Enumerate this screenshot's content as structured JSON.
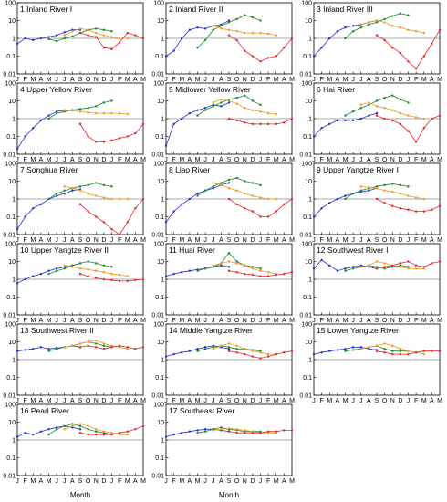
{
  "figure": {
    "x_axis_label": "Month",
    "month_ticks": [
      "J",
      "F",
      "M",
      "A",
      "M",
      "J",
      "J",
      "A",
      "S",
      "O",
      "N",
      "D",
      "J",
      "F",
      "M",
      "A",
      "M"
    ],
    "y_ticks": [
      "100",
      "10",
      "1",
      "0.1",
      "0.01"
    ],
    "colors": {
      "winter": "#e8252a",
      "spring": "#2233cc",
      "summer": "#1a8a2a",
      "autumn": "#f29a1a",
      "frame": "#000000",
      "ref_line": "#555555"
    }
  },
  "chart_data": [
    {
      "type": "line",
      "title": "1 Inland River I",
      "ylim": [
        0.01,
        100
      ],
      "yscale": "log",
      "series": [
        {
          "values": [
            0.5,
            1.0,
            0.8,
            1.0,
            1.2,
            1.5,
            2.2,
            3.0,
            3.0
          ]
        },
        {
          "values": [
            0.9,
            0.7,
            1.0,
            1.3,
            2.0,
            3.0,
            3.5,
            3.0,
            2.5
          ]
        },
        {
          "values": [
            1.5,
            2.5,
            3.5,
            3.0,
            2.0,
            1.5,
            1.2,
            1.0,
            1.0
          ]
        },
        {
          "values": [
            2.0,
            1.5,
            1.2,
            0.3,
            0.25,
            0.6,
            2.0,
            1.5,
            1.0
          ]
        }
      ]
    },
    {
      "type": "line",
      "title": "2 Inland River II",
      "ylim": [
        0.01,
        100
      ],
      "yscale": "log",
      "series": [
        {
          "values": [
            0.1,
            0.2,
            1.0,
            3.0,
            4.0,
            3.5,
            5.0,
            6.0,
            10.0
          ]
        },
        {
          "values": [
            0.3,
            0.8,
            3.0,
            5.0,
            8.0,
            12.0,
            20.0,
            15.0,
            10.0
          ]
        },
        {
          "values": [
            5.0,
            3.5,
            3.0,
            2.5,
            2.0,
            2.0,
            2.0,
            1.8,
            1.5
          ]
        },
        {
          "values": [
            1.5,
            0.8,
            0.2,
            0.1,
            0.05,
            0.08,
            0.1,
            0.3,
            1.0
          ]
        }
      ]
    },
    {
      "type": "line",
      "title": "3 Inland River III",
      "ylim": [
        0.01,
        100
      ],
      "yscale": "log",
      "series": [
        {
          "values": [
            0.1,
            0.3,
            1.0,
            2.5,
            4.0,
            5.0,
            6.0,
            8.0,
            10.0
          ]
        },
        {
          "values": [
            1.0,
            2.5,
            4.0,
            6.0,
            8.0,
            12.0,
            18.0,
            25.0,
            20.0
          ]
        },
        {
          "values": [
            6.0,
            8.0,
            10.0,
            8.0,
            5.0,
            4.0,
            3.0,
            2.5,
            2.0
          ]
        },
        {
          "values": [
            1.5,
            0.8,
            0.3,
            0.15,
            0.05,
            0.02,
            0.1,
            0.5,
            3.0
          ]
        }
      ]
    },
    {
      "type": "line",
      "title": "4 Upper Yellow River",
      "ylim": [
        0.01,
        100
      ],
      "yscale": "log",
      "series": [
        {
          "values": [
            0.02,
            0.1,
            0.3,
            0.8,
            1.5,
            2.5,
            3.0,
            3.0,
            3.5
          ]
        },
        {
          "values": [
            1.0,
            2.0,
            2.5,
            3.0,
            3.5,
            4.0,
            5.0,
            8.0,
            10.0
          ]
        },
        {
          "values": [
            3.0,
            2.8,
            2.5,
            2.2,
            2.0,
            2.0,
            2.0,
            2.0,
            1.8
          ]
        },
        {
          "values": [
            0.5,
            0.1,
            0.05,
            0.05,
            0.06,
            0.08,
            0.1,
            0.15,
            0.5
          ]
        }
      ]
    },
    {
      "type": "line",
      "title": "5 Midlower Yellow River",
      "ylim": [
        0.01,
        100
      ],
      "yscale": "log",
      "series": [
        {
          "values": [
            0.03,
            0.5,
            1.0,
            2.0,
            3.0,
            4.0,
            6.0,
            5.0,
            8.0
          ]
        },
        {
          "values": [
            1.5,
            3.0,
            5.0,
            8.0,
            12.0,
            15.0,
            20.0,
            10.0,
            6.0
          ]
        },
        {
          "values": [
            8.0,
            12.0,
            10.0,
            7.0,
            4.0,
            3.0,
            2.5,
            2.0,
            1.8
          ]
        },
        {
          "values": [
            1.0,
            0.8,
            0.6,
            0.5,
            0.5,
            0.5,
            0.5,
            0.6,
            1.0
          ]
        }
      ]
    },
    {
      "type": "line",
      "title": "6 Hai River",
      "ylim": [
        0.01,
        100
      ],
      "yscale": "log",
      "series": [
        {
          "values": [
            0.1,
            0.3,
            0.5,
            0.8,
            0.8,
            0.8,
            1.0,
            1.5,
            2.0
          ]
        },
        {
          "values": [
            1.5,
            2.5,
            4.0,
            6.0,
            10.0,
            15.0,
            20.0,
            12.0,
            8.0
          ]
        },
        {
          "values": [
            6.0,
            8.0,
            5.0,
            4.0,
            3.0,
            2.0,
            1.5,
            1.2,
            1.0
          ]
        },
        {
          "values": [
            1.5,
            1.0,
            0.8,
            0.5,
            0.2,
            0.05,
            0.3,
            1.0,
            1.5
          ]
        }
      ]
    },
    {
      "type": "line",
      "title": "7 Songhua River",
      "ylim": [
        0.01,
        100
      ],
      "yscale": "log",
      "series": [
        {
          "values": [
            0.02,
            0.1,
            0.3,
            0.5,
            1.0,
            1.5,
            2.0,
            3.0,
            3.5
          ]
        },
        {
          "values": [
            1.0,
            2.0,
            3.0,
            4.0,
            5.0,
            6.0,
            8.0,
            6.0,
            5.0
          ]
        },
        {
          "values": [
            5.0,
            4.0,
            3.0,
            2.0,
            1.5,
            1.2,
            1.0,
            1.0,
            1.0
          ]
        },
        {
          "values": [
            0.5,
            0.2,
            0.1,
            0.05,
            0.02,
            0.01,
            0.05,
            0.3,
            1.0
          ]
        }
      ]
    },
    {
      "type": "line",
      "title": "8 Liao River",
      "ylim": [
        0.01,
        100
      ],
      "yscale": "log",
      "series": [
        {
          "values": [
            0.05,
            0.2,
            0.5,
            1.0,
            2.0,
            3.0,
            4.0,
            6.0,
            8.0
          ]
        },
        {
          "values": [
            1.5,
            3.0,
            5.0,
            8.0,
            12.0,
            15.0,
            10.0,
            8.0,
            6.0
          ]
        },
        {
          "values": [
            8.0,
            6.0,
            4.0,
            3.0,
            2.0,
            1.5,
            1.2,
            1.0,
            1.0
          ]
        },
        {
          "values": [
            1.0,
            0.5,
            0.3,
            0.2,
            0.1,
            0.1,
            0.2,
            0.5,
            1.0
          ]
        }
      ]
    },
    {
      "type": "line",
      "title": "9 Upper Yangtze River I",
      "ylim": [
        0.01,
        100
      ],
      "yscale": "log",
      "series": [
        {
          "values": [
            0.1,
            0.3,
            0.6,
            1.0,
            1.5,
            2.0,
            2.5,
            3.0,
            4.0
          ]
        },
        {
          "values": [
            1.0,
            2.0,
            3.0,
            4.0,
            5.0,
            6.0,
            7.0,
            6.0,
            5.0
          ]
        },
        {
          "values": [
            5.0,
            4.5,
            4.0,
            3.0,
            2.5,
            2.0,
            1.5,
            1.2,
            1.0
          ]
        },
        {
          "values": [
            1.0,
            0.6,
            0.4,
            0.3,
            0.25,
            0.2,
            0.2,
            0.25,
            0.4
          ]
        }
      ]
    },
    {
      "type": "line",
      "title": "10 Upper Yangtze River II",
      "ylim": [
        0.01,
        100
      ],
      "yscale": "log",
      "series": [
        {
          "values": [
            0.6,
            1.0,
            1.5,
            2.0,
            3.0,
            4.0,
            5.0,
            6.0,
            8.0
          ]
        },
        {
          "values": [
            2.0,
            3.0,
            4.0,
            6.0,
            8.0,
            10.0,
            8.0,
            6.0,
            5.0
          ]
        },
        {
          "values": [
            6.0,
            5.0,
            4.0,
            3.5,
            3.0,
            2.5,
            2.0,
            1.8,
            1.5
          ]
        },
        {
          "values": [
            2.0,
            1.5,
            1.2,
            1.0,
            0.9,
            0.8,
            0.8,
            0.9,
            1.0
          ]
        }
      ]
    },
    {
      "type": "line",
      "title": "11 Huai River",
      "ylim": [
        0.01,
        100
      ],
      "yscale": "log",
      "series": [
        {
          "values": [
            1.5,
            2.0,
            2.5,
            3.0,
            3.5,
            4.0,
            5.0,
            6.0,
            5.0
          ]
        },
        {
          "values": [
            3.0,
            4.0,
            5.0,
            8.0,
            30.0,
            10.0,
            6.0,
            5.0,
            4.0
          ]
        },
        {
          "values": [
            6.0,
            8.0,
            10.0,
            8.0,
            6.0,
            4.0,
            3.0,
            2.5,
            2.0
          ]
        },
        {
          "values": [
            3.0,
            2.5,
            2.0,
            1.8,
            1.5,
            1.5,
            1.8,
            2.0,
            2.5
          ]
        }
      ]
    },
    {
      "type": "line",
      "title": "12 Southwest River I",
      "ylim": [
        0.01,
        100
      ],
      "yscale": "log",
      "series": [
        {
          "values": [
            4.0,
            12.0,
            6.0,
            3.0,
            4.0,
            5.0,
            6.0,
            5.0,
            4.0
          ]
        },
        {
          "values": [
            3.0,
            4.0,
            5.0,
            6.0,
            5.0,
            4.0,
            5.0,
            6.0,
            5.0
          ]
        },
        {
          "values": [
            5.0,
            6.0,
            10.0,
            8.0,
            6.0,
            5.0,
            4.0,
            4.0,
            4.0
          ]
        },
        {
          "values": [
            4.0,
            5.0,
            6.0,
            8.0,
            10.0,
            6.0,
            5.0,
            8.0,
            10.0
          ]
        }
      ]
    },
    {
      "type": "line",
      "title": "13 Southwest River II",
      "ylim": [
        0.01,
        100
      ],
      "yscale": "log",
      "series": [
        {
          "values": [
            3.0,
            3.5,
            4.0,
            5.0,
            4.0,
            4.5,
            5.0,
            6.0,
            5.0
          ]
        },
        {
          "values": [
            3.0,
            4.0,
            5.0,
            6.0,
            8.0,
            10.0,
            8.0,
            6.0,
            5.0
          ]
        },
        {
          "values": [
            5.0,
            6.0,
            8.0,
            10.0,
            12.0,
            8.0,
            6.0,
            5.0,
            4.0
          ]
        },
        {
          "values": [
            5.0,
            6.0,
            5.0,
            4.0,
            5.0,
            6.0,
            5.0,
            4.0,
            5.0
          ]
        }
      ]
    },
    {
      "type": "line",
      "title": "14 Middle Yangtze River",
      "ylim": [
        0.01,
        100
      ],
      "yscale": "log",
      "series": [
        {
          "values": [
            1.5,
            2.0,
            2.5,
            3.0,
            4.0,
            5.0,
            6.0,
            5.0,
            4.0
          ]
        },
        {
          "values": [
            3.0,
            4.0,
            5.0,
            6.0,
            5.0,
            4.0,
            4.0,
            3.5,
            3.0
          ]
        },
        {
          "values": [
            4.0,
            6.0,
            8.0,
            6.0,
            4.0,
            3.0,
            2.5,
            2.0,
            2.0
          ]
        },
        {
          "values": [
            3.0,
            2.5,
            2.0,
            1.5,
            1.2,
            1.5,
            2.0,
            2.5,
            3.0
          ]
        }
      ]
    },
    {
      "type": "line",
      "title": "15 Lower Yangtze River",
      "ylim": [
        0.01,
        100
      ],
      "yscale": "log",
      "series": [
        {
          "values": [
            2.0,
            2.5,
            3.0,
            3.5,
            4.0,
            5.0,
            5.0,
            4.0,
            3.5
          ]
        },
        {
          "values": [
            3.0,
            3.5,
            4.0,
            5.0,
            6.0,
            4.0,
            3.0,
            3.0,
            3.0
          ]
        },
        {
          "values": [
            4.0,
            5.0,
            6.0,
            8.0,
            6.0,
            4.0,
            3.0,
            2.5,
            2.0
          ]
        },
        {
          "values": [
            3.0,
            2.5,
            2.0,
            2.0,
            2.0,
            2.5,
            3.0,
            3.0,
            3.0
          ]
        }
      ]
    },
    {
      "type": "line",
      "title": "16 Pearl River",
      "ylim": [
        0.01,
        100
      ],
      "yscale": "log",
      "series": [
        {
          "values": [
            1.5,
            2.5,
            2.0,
            3.0,
            4.0,
            5.0,
            6.0,
            5.0,
            4.0
          ]
        },
        {
          "values": [
            2.0,
            4.0,
            6.0,
            8.0,
            6.0,
            4.0,
            3.0,
            2.5,
            2.0
          ]
        },
        {
          "values": [
            4.0,
            6.0,
            8.0,
            6.0,
            4.0,
            3.0,
            2.5,
            2.0,
            2.0
          ]
        },
        {
          "values": [
            2.5,
            2.0,
            2.0,
            2.0,
            2.0,
            2.5,
            3.0,
            4.0,
            6.0
          ]
        }
      ]
    },
    {
      "type": "line",
      "title": "17 Southeast River",
      "ylim": [
        0.01,
        100
      ],
      "yscale": "log",
      "series": [
        {
          "values": [
            1.5,
            2.0,
            2.5,
            3.0,
            3.5,
            4.0,
            4.0,
            3.5,
            3.0
          ]
        },
        {
          "values": [
            2.5,
            3.0,
            4.0,
            5.0,
            4.0,
            3.5,
            3.0,
            3.0,
            3.0
          ]
        },
        {
          "values": [
            3.5,
            4.0,
            4.5,
            4.0,
            3.5,
            3.0,
            2.5,
            2.5,
            2.5
          ]
        },
        {
          "values": [
            3.0,
            2.5,
            2.5,
            2.5,
            2.5,
            3.0,
            3.0,
            3.5,
            3.5
          ]
        }
      ]
    }
  ]
}
